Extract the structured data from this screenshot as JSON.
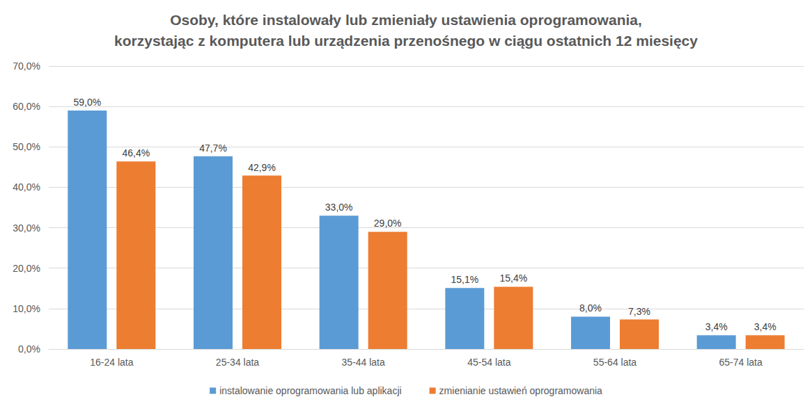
{
  "chart_data": {
    "type": "bar",
    "title": "Osoby, które instalowały lub zmieniały ustawienia oprogramowania,\nkorzystając z komputera lub urządzenia przenośnego w ciągu ostatnich 12 miesięcy",
    "categories": [
      "16-24 lata",
      "25-34 lata",
      "35-44 lata",
      "45-54 lata",
      "55-64 lata",
      "65-74 lata"
    ],
    "series": [
      {
        "name": "instalowanie oprogramowania lub aplikacji",
        "color": "#5b9bd5",
        "values": [
          59.0,
          47.7,
          33.0,
          15.1,
          8.0,
          3.4
        ],
        "value_labels": [
          "59,0%",
          "47,7%",
          "33,0%",
          "15,1%",
          "8,0%",
          "3,4%"
        ]
      },
      {
        "name": "zmienianie ustawień oprogramowania",
        "color": "#ed7d31",
        "values": [
          46.4,
          42.9,
          29.0,
          15.4,
          7.3,
          3.4
        ],
        "value_labels": [
          "46,4%",
          "42,9%",
          "29,0%",
          "15,4%",
          "7,3%",
          "3,4%"
        ]
      }
    ],
    "ylim": [
      0,
      70
    ],
    "yticks": [
      {
        "value": 0,
        "label": "0,0%"
      },
      {
        "value": 10,
        "label": "10,0%"
      },
      {
        "value": 20,
        "label": "20,0%"
      },
      {
        "value": 30,
        "label": "30,0%"
      },
      {
        "value": 40,
        "label": "40,0%"
      },
      {
        "value": 50,
        "label": "50,0%"
      },
      {
        "value": 60,
        "label": "60,0%"
      },
      {
        "value": 70,
        "label": "70,0%"
      }
    ],
    "grid": true,
    "legend": "bottom",
    "data_labels": true
  }
}
